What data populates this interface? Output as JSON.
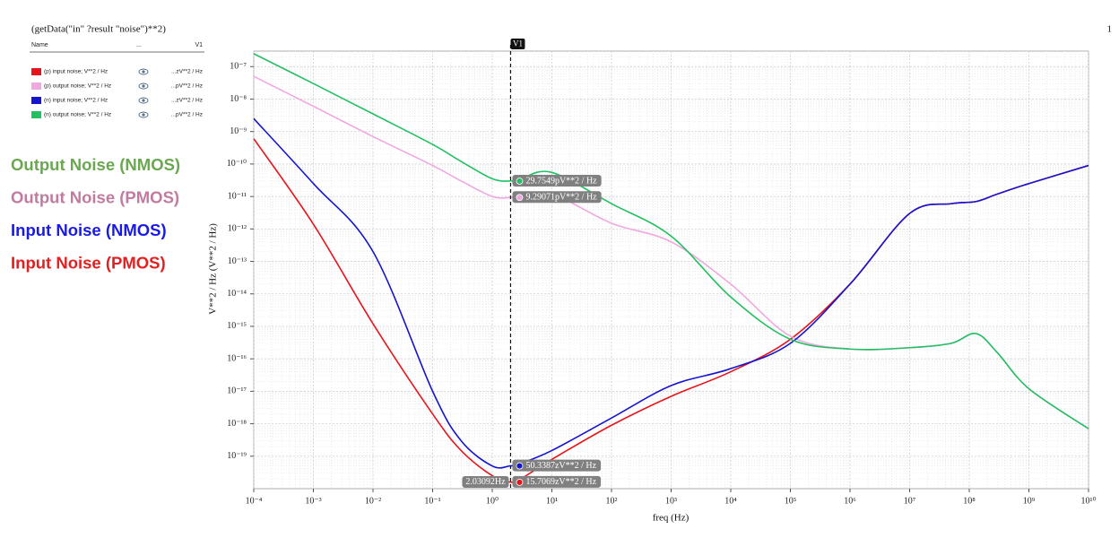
{
  "chart_data": {
    "type": "line",
    "title": "(getData(\"in\" ?result \"noise\")**2)",
    "page_number": "1",
    "x_label": "freq (Hz)",
    "y_label": "V**2 / Hz (V**2 / Hz)",
    "xscale": "log",
    "yscale": "log",
    "grid": true,
    "minor_grid": true,
    "legend_header": [
      "Name",
      "...",
      "V1"
    ],
    "xlim": [
      0.0001,
      10000000000
    ],
    "ylim": [
      1e-20,
      3e-07
    ],
    "xticks": [
      {
        "value": 0.0001,
        "label": "10⁻⁴"
      },
      {
        "value": 0.001,
        "label": "10⁻³"
      },
      {
        "value": 0.01,
        "label": "10⁻²"
      },
      {
        "value": 0.1,
        "label": "10⁻¹"
      },
      {
        "value": 1,
        "label": "10⁰"
      },
      {
        "value": 10,
        "label": "10¹"
      },
      {
        "value": 100,
        "label": "10²"
      },
      {
        "value": 1000,
        "label": "10³"
      },
      {
        "value": 10000,
        "label": "10⁴"
      },
      {
        "value": 100000,
        "label": "10⁵"
      },
      {
        "value": 1000000,
        "label": "10⁶"
      },
      {
        "value": 10000000,
        "label": "10⁷"
      },
      {
        "value": 100000000,
        "label": "10⁸"
      },
      {
        "value": 1000000000,
        "label": "10⁹"
      },
      {
        "value": 10000000000,
        "label": "10¹⁰"
      }
    ],
    "yticks": [
      {
        "value": 1e-19,
        "label": "10⁻¹⁹"
      },
      {
        "value": 1e-18,
        "label": "10⁻¹⁸"
      },
      {
        "value": 1e-17,
        "label": "10⁻¹⁷"
      },
      {
        "value": 1e-16,
        "label": "10⁻¹⁶"
      },
      {
        "value": 1e-15,
        "label": "10⁻¹⁵"
      },
      {
        "value": 1e-14,
        "label": "10⁻¹⁴"
      },
      {
        "value": 1e-13,
        "label": "10⁻¹³"
      },
      {
        "value": 1e-12,
        "label": "10⁻¹²"
      },
      {
        "value": 1e-11,
        "label": "10⁻¹¹"
      },
      {
        "value": 1e-10,
        "label": "10⁻¹⁰"
      },
      {
        "value": 1e-09,
        "label": "10⁻⁹"
      },
      {
        "value": 1e-08,
        "label": "10⁻⁸"
      },
      {
        "value": 1e-07,
        "label": "10⁻⁷"
      }
    ],
    "x": [
      0.0001,
      0.001,
      0.01,
      0.1,
      0.3,
      1,
      2,
      3,
      10,
      100,
      1000,
      10000,
      100000,
      1000000,
      10000000,
      50000000,
      130000000,
      300000000,
      1000000000,
      10000000000
    ],
    "series": [
      {
        "name": "(p) input noise; V**2 / Hz",
        "color": "#e8141b",
        "legend_value": "...zV**2 / Hz",
        "values": [
          6e-10,
          1.4e-12,
          1.2e-15,
          2e-18,
          1.5e-19,
          2.5e-20,
          1.6e-20,
          2e-20,
          8e-20,
          9e-19,
          7e-18,
          4e-17,
          4e-16,
          2e-14,
          3e-12,
          6e-12,
          7e-12,
          1.2e-11,
          2.5e-11,
          9e-11
        ],
        "cursor_value": 1.57069e-20,
        "cursor_label": "15.7069zV**2 / Hz"
      },
      {
        "name": "(p) output noise; V**2 / Hz",
        "color": "#f0a8e0",
        "legend_value": "...pV**2 / Hz",
        "values": [
          5e-08,
          6e-09,
          7e-10,
          9e-11,
          3e-11,
          1e-11,
          9.3e-12,
          1e-11,
          1.2e-11,
          1.5e-12,
          4e-13,
          2e-14,
          5e-16,
          2e-16,
          2.2e-16,
          3e-16,
          6e-16,
          1.5e-16,
          1.2e-17,
          7e-19
        ],
        "cursor_value": 9.29071e-12,
        "cursor_label": "9.29071pV**2 / Hz"
      },
      {
        "name": "(n) input noise; V**2 / Hz",
        "color": "#1515d0",
        "legend_value": "...zV**2 / Hz",
        "values": [
          2.5e-09,
          2.5e-11,
          2e-13,
          1e-17,
          3e-19,
          5e-20,
          5.03e-20,
          6e-20,
          1.5e-19,
          1.5e-18,
          1.5e-17,
          5e-17,
          3e-16,
          2e-14,
          3e-12,
          6e-12,
          7e-12,
          1.2e-11,
          2.5e-11,
          9e-11
        ],
        "cursor_value": 5.03387e-20,
        "cursor_label": "50.3387zV**2 / Hz"
      },
      {
        "name": "(n) output noise; V**2 / Hz",
        "color": "#22c062",
        "legend_value": "...pV**2 / Hz",
        "values": [
          2.5e-07,
          3e-08,
          3.5e-09,
          4e-10,
          1.2e-10,
          3.5e-11,
          3e-11,
          3.5e-11,
          5.5e-11,
          6e-12,
          6e-13,
          8e-15,
          4e-16,
          2e-16,
          2.2e-16,
          3e-16,
          6e-16,
          1.5e-16,
          1.2e-17,
          7e-19
        ],
        "cursor_value": 2.97549e-11,
        "cursor_label": "29.7549pV**2 / Hz"
      }
    ],
    "cursor": {
      "label": "V1",
      "x": 2.03092,
      "x_label": "2.03092Hz"
    },
    "annotations": [
      {
        "text": "Output Noise (NMOS)",
        "color": "#6aa84f"
      },
      {
        "text": "Output Noise (PMOS)",
        "color": "#c27ba0"
      },
      {
        "text": "Input Noise (NMOS)",
        "color": "#1a1ae6"
      },
      {
        "text": "Input Noise (PMOS)",
        "color": "#e32020"
      }
    ]
  }
}
